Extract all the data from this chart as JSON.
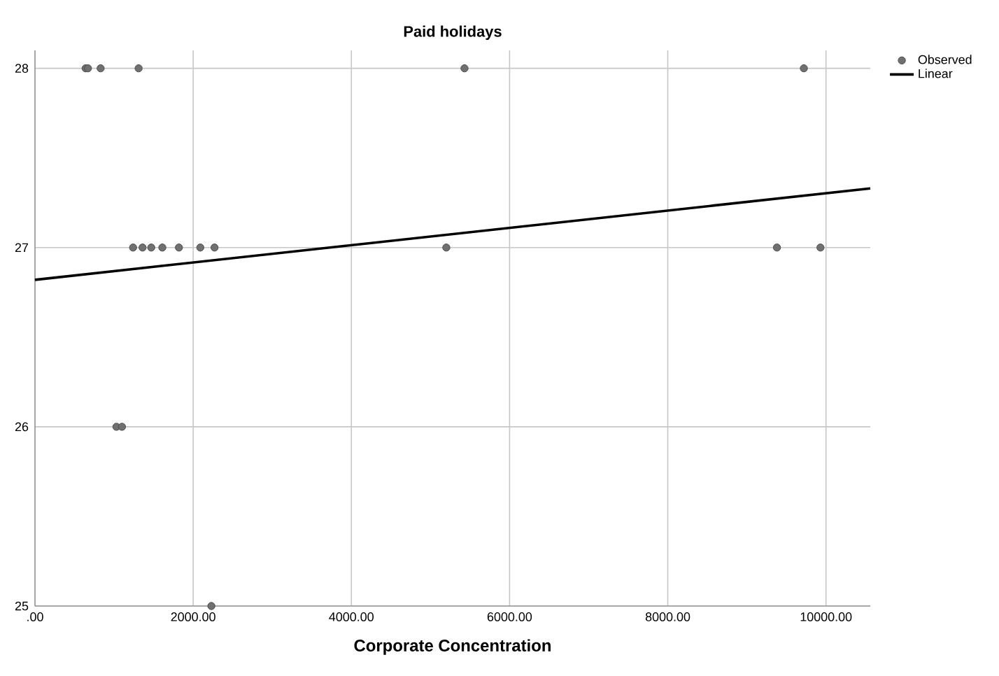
{
  "chart_data": {
    "type": "scatter",
    "title": "Paid holidays",
    "xlabel": "Corporate Concentration",
    "xlim": [
      0,
      10560
    ],
    "ylim": [
      25,
      28.1
    ],
    "xticks": [
      {
        "value": 0,
        "label": ".00"
      },
      {
        "value": 2000,
        "label": "2000.00"
      },
      {
        "value": 4000,
        "label": "4000.00"
      },
      {
        "value": 6000,
        "label": "6000.00"
      },
      {
        "value": 8000,
        "label": "8000.00"
      },
      {
        "value": 10000,
        "label": "10000.00"
      }
    ],
    "yticks": [
      25,
      26,
      27,
      28
    ],
    "grid": true,
    "legend": "top right",
    "series": [
      {
        "name": "Observed",
        "marker": "circle",
        "color": "#707070",
        "x": [
          640,
          670,
          830,
          1310,
          5430,
          9720,
          1240,
          1360,
          1470,
          1610,
          1820,
          2090,
          2270,
          5200,
          9380,
          9930,
          1030,
          1100,
          2230
        ],
        "values": [
          28,
          28,
          28,
          28,
          28,
          28,
          27,
          27,
          27,
          27,
          27,
          27,
          27,
          27,
          27,
          27,
          26,
          26,
          25
        ]
      },
      {
        "name": "Linear",
        "type": "line",
        "marker": "none",
        "color": "#000000",
        "x": [
          0,
          10560
        ],
        "values": [
          26.82,
          27.33
        ]
      }
    ]
  }
}
